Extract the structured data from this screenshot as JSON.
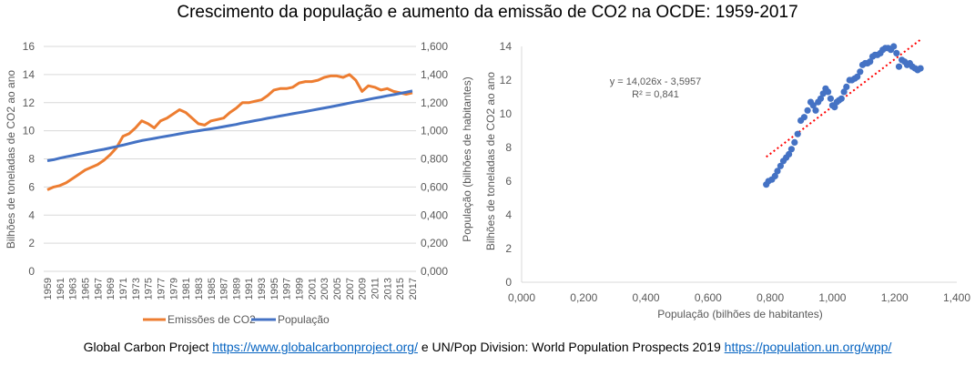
{
  "title": "Crescimento da população e aumento da emissão de CO2 na OCDE: 1959-2017",
  "footer": {
    "source1": "Global Carbon Project",
    "link1": "https://www.globalcarbonproject.org/",
    "connector": "e UN/Pop Division: World Population Prospects 2019",
    "link2": "https://population.un.org/wpp/"
  },
  "colors": {
    "emissions": "#ed7d31",
    "population": "#4472c4",
    "trendline": "#ff0000",
    "grid": "#d9d9d9"
  },
  "chart_data": [
    {
      "type": "line",
      "title": "",
      "xlabel": "",
      "ylabel": "Bilhões de toneladas de CO2 ao ano",
      "y2label": "População (bilhões de habitantes)",
      "ylim": [
        0,
        16
      ],
      "y2lim": [
        0,
        1.6
      ],
      "yticks": [
        "0",
        "2",
        "4",
        "6",
        "8",
        "10",
        "12",
        "14",
        "16"
      ],
      "y2ticks": [
        "0,000",
        "0,200",
        "0,400",
        "0,600",
        "0,800",
        "1,000",
        "1,200",
        "1,400",
        "1,600"
      ],
      "grid": true,
      "legend": "bottom",
      "x": [
        1959,
        1960,
        1961,
        1962,
        1963,
        1964,
        1965,
        1966,
        1967,
        1968,
        1969,
        1970,
        1971,
        1972,
        1973,
        1974,
        1975,
        1976,
        1977,
        1978,
        1979,
        1980,
        1981,
        1982,
        1983,
        1984,
        1985,
        1986,
        1987,
        1988,
        1989,
        1990,
        1991,
        1992,
        1993,
        1994,
        1995,
        1996,
        1997,
        1998,
        1999,
        2000,
        2001,
        2002,
        2003,
        2004,
        2005,
        2006,
        2007,
        2008,
        2009,
        2010,
        2011,
        2012,
        2013,
        2014,
        2015,
        2016,
        2017
      ],
      "xticklabels": [
        "1959",
        "1961",
        "1963",
        "1965",
        "1967",
        "1969",
        "1971",
        "1973",
        "1975",
        "1977",
        "1979",
        "1981",
        "1983",
        "1985",
        "1987",
        "1989",
        "1991",
        "1993",
        "1995",
        "1997",
        "1999",
        "2001",
        "2003",
        "2005",
        "2007",
        "2009",
        "2011",
        "2013",
        "2015",
        "2017"
      ],
      "series": [
        {
          "name": "Emissões de CO2",
          "axis": "left",
          "values": [
            5.8,
            6.0,
            6.1,
            6.3,
            6.6,
            6.9,
            7.2,
            7.4,
            7.6,
            7.9,
            8.3,
            8.8,
            9.6,
            9.8,
            10.2,
            10.7,
            10.5,
            10.2,
            10.7,
            10.9,
            11.2,
            11.5,
            11.3,
            10.9,
            10.5,
            10.4,
            10.7,
            10.8,
            10.9,
            11.3,
            11.6,
            12.0,
            12.0,
            12.1,
            12.2,
            12.5,
            12.9,
            13.0,
            13.0,
            13.1,
            13.4,
            13.5,
            13.5,
            13.6,
            13.8,
            13.9,
            13.9,
            13.8,
            14.0,
            13.6,
            12.8,
            13.2,
            13.1,
            12.9,
            13.0,
            12.8,
            12.7,
            12.6,
            12.7
          ]
        },
        {
          "name": "População",
          "axis": "right",
          "values": [
            0.787,
            0.794,
            0.805,
            0.815,
            0.823,
            0.833,
            0.842,
            0.851,
            0.86,
            0.868,
            0.878,
            0.888,
            0.898,
            0.909,
            0.92,
            0.93,
            0.938,
            0.946,
            0.954,
            0.962,
            0.97,
            0.978,
            0.986,
            0.994,
            1.0,
            1.007,
            1.014,
            1.021,
            1.029,
            1.037,
            1.045,
            1.055,
            1.063,
            1.072,
            1.08,
            1.089,
            1.097,
            1.105,
            1.113,
            1.121,
            1.129,
            1.137,
            1.145,
            1.154,
            1.162,
            1.17,
            1.179,
            1.188,
            1.197,
            1.206,
            1.214,
            1.223,
            1.232,
            1.24,
            1.249,
            1.257,
            1.266,
            1.274,
            1.283
          ]
        }
      ]
    },
    {
      "type": "scatter",
      "title": "",
      "xlabel": "População (bilhões de habitantes)",
      "ylabel": "Bilhões de toneladas de CO2 ao ano",
      "xlim": [
        0,
        1.4
      ],
      "ylim": [
        0,
        14
      ],
      "xticks": [
        "0,000",
        "0,200",
        "0,400",
        "0,600",
        "0,800",
        "1,000",
        "1,200",
        "1,400"
      ],
      "yticks": [
        "0",
        "2",
        "4",
        "6",
        "8",
        "10",
        "12",
        "14"
      ],
      "grid": false,
      "trendline": {
        "type": "linear",
        "slope": 14.026,
        "intercept": -3.5957,
        "x_range": [
          0.787,
          1.283
        ],
        "equation_label": "y = 14,026x - 3,5957",
        "r2_label": "R² = 0,841"
      },
      "points_from": "same as series of chart 1: x = População, y = Emissões de CO2"
    }
  ]
}
